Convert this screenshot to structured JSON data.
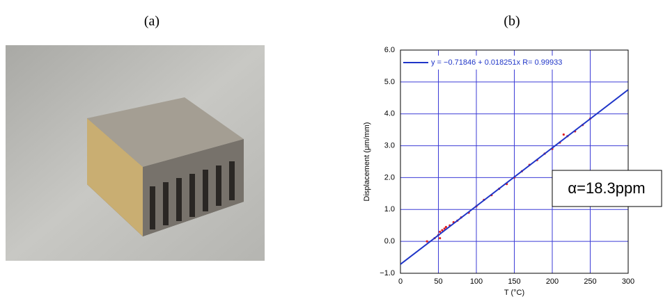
{
  "panel_labels": [
    "(a)",
    "(b)"
  ],
  "chart_data": {
    "type": "scatter",
    "xlabel": "T (°C)",
    "ylabel": "Displacement (μm/mm)",
    "xlim": [
      0,
      300
    ],
    "ylim": [
      -1.0,
      6.0
    ],
    "xticks": [
      0,
      50,
      100,
      150,
      200,
      250,
      300
    ],
    "yticks": [
      {
        "value": -1.0,
        "label": "−1.0"
      },
      {
        "value": 0,
        "label": "0.0"
      },
      {
        "value": 1.0,
        "label": "1.0"
      },
      {
        "value": 2.0,
        "label": "2.0"
      },
      {
        "value": 3.0,
        "label": "3.0"
      },
      {
        "value": 4.0,
        "label": "4.0"
      },
      {
        "value": 5.0,
        "label": "5.0"
      },
      {
        "value": 6.0,
        "label": "6.0"
      }
    ],
    "grid": true,
    "grid_color": "#3b3bd6",
    "fit": {
      "name": "y = −0.71846 + 0.018251x    R= 0.99933",
      "color": "#1f35c8",
      "x": [
        0,
        300
      ],
      "values": [
        -0.718,
        4.757
      ]
    },
    "points": {
      "color": "#e02020",
      "x": [
        35,
        45,
        50,
        52,
        52,
        55,
        58,
        60,
        65,
        70,
        75,
        80,
        90,
        100,
        110,
        120,
        130,
        140,
        150,
        160,
        170,
        180,
        190,
        200,
        210,
        215,
        220,
        230,
        240,
        250
      ],
      "values": [
        0.0,
        0.1,
        0.2,
        0.3,
        0.1,
        0.35,
        0.4,
        0.45,
        0.5,
        0.6,
        0.65,
        0.75,
        0.9,
        1.1,
        1.3,
        1.45,
        1.65,
        1.8,
        2.0,
        2.2,
        2.4,
        2.55,
        2.75,
        2.9,
        3.1,
        3.35,
        3.3,
        3.45,
        3.65,
        3.85
      ]
    },
    "annotation": "α=18.3ppm"
  }
}
